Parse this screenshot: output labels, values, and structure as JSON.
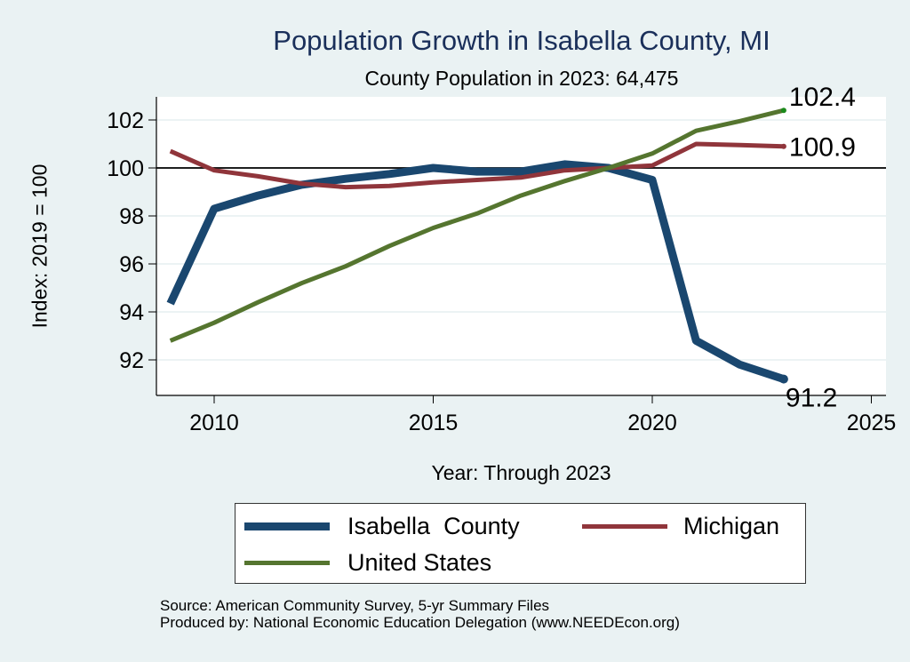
{
  "chart_data": {
    "type": "line",
    "title": "Population Growth in Isabella County, MI",
    "subtitle": "County Population in 2023: 64,475",
    "xlabel": "Year: Through 2023",
    "ylabel": "Index: 2019 = 100",
    "xlim": [
      2009,
      2025.3
    ],
    "ylim": [
      90.6,
      103
    ],
    "xticks": [
      2010,
      2015,
      2020,
      2025
    ],
    "yticks": [
      92,
      94,
      96,
      98,
      100,
      102
    ],
    "reference_line": 100,
    "grid": true,
    "legend_position": "bottom",
    "x": [
      2009,
      2010,
      2011,
      2012,
      2013,
      2014,
      2015,
      2016,
      2017,
      2018,
      2019,
      2020,
      2021,
      2022,
      2023
    ],
    "series": [
      {
        "name": "Isabella  County",
        "color": "#1a476f",
        "width": 9,
        "values": [
          94.35,
          98.3,
          98.85,
          99.3,
          99.55,
          99.75,
          100.0,
          99.85,
          99.85,
          100.15,
          100.0,
          99.5,
          92.8,
          91.8,
          91.2
        ],
        "end_label": "91.2"
      },
      {
        "name": "Michigan",
        "color": "#90353b",
        "width": 5,
        "values": [
          100.7,
          99.9,
          99.65,
          99.35,
          99.2,
          99.25,
          99.4,
          99.5,
          99.6,
          99.9,
          100.0,
          100.1,
          101.0,
          100.95,
          100.9
        ],
        "end_label": "100.9"
      },
      {
        "name": "United States",
        "color": "#55752f",
        "width": 5,
        "values": [
          92.8,
          93.55,
          94.4,
          95.2,
          95.9,
          96.75,
          97.5,
          98.1,
          98.85,
          99.45,
          100.0,
          100.6,
          101.55,
          101.95,
          102.4
        ],
        "end_label": "102.4",
        "end_marker_color": "#1b8a1b"
      }
    ]
  },
  "footer": {
    "source": "Source: American Community Survey, 5-yr Summary Files",
    "producer": "Produced by: National Economic Education Delegation (www.NEEDEcon.org)"
  }
}
